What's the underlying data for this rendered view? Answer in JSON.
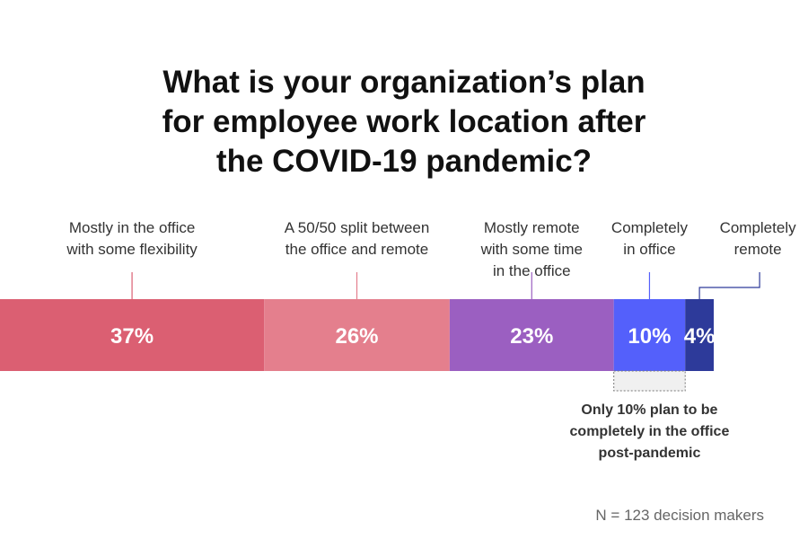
{
  "chart_data": {
    "type": "bar",
    "title": "What is your organization’s plan for employee work location after the COVID-19 pandemic?",
    "title_lines": [
      "What is your organization’s plan",
      "for employee work location after",
      "the COVID-19 pandemic?"
    ],
    "categories": [
      [
        "Mostly in the office",
        "with some flexibility"
      ],
      [
        "A 50/50 split between",
        "the office and remote"
      ],
      [
        "Mostly remote",
        "with some time",
        "in the office"
      ],
      [
        "Completely",
        "in office"
      ],
      [
        "Completely",
        "remote"
      ]
    ],
    "values": [
      37,
      26,
      23,
      10,
      4
    ],
    "value_labels": [
      "37%",
      "26%",
      "23%",
      "10%",
      "4%"
    ],
    "unit": "%",
    "stacked": true,
    "colors": [
      "#db5f72",
      "#e47f8d",
      "#9b5fc1",
      "#5460fb",
      "#2d3a9a"
    ],
    "annotation": {
      "lines": [
        "Only 10% plan to be",
        "completely in the office",
        "post-pandemic"
      ],
      "target_index": 3
    },
    "footnote": "N = 123 decision makers"
  }
}
